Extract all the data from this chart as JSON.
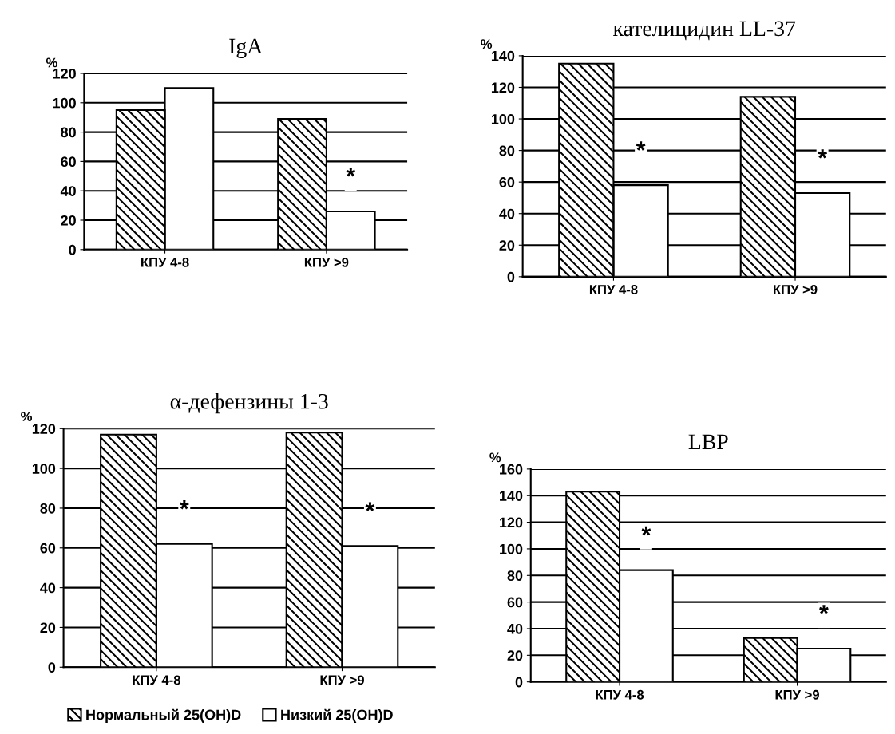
{
  "chart_data": [
    {
      "type": "bar",
      "title": "IgA",
      "ylabel": "%",
      "categories": [
        "КПУ 4-8",
        "КПУ >9"
      ],
      "series": [
        {
          "color": "#000000",
          "values": [
            95,
            89
          ]
        },
        {
          "color": "#ffffff",
          "values": [
            110,
            26
          ]
        }
      ],
      "ylim": [
        0,
        120
      ],
      "yticks": [
        0,
        20,
        40,
        60,
        80,
        100,
        120
      ],
      "grid": "y",
      "legend": false,
      "annotations": [
        {
          "text": "*",
          "x": "КПУ >9",
          "y": 26
        }
      ]
    },
    {
      "type": "bar",
      "title": "кателицидин LL-37",
      "ylabel": "%",
      "categories": [
        "КПУ 4-8",
        "КПУ >9"
      ],
      "series": [
        {
          "color": "#000000",
          "values": [
            135,
            114
          ]
        },
        {
          "color": "#ffffff",
          "values": [
            58,
            53
          ]
        }
      ],
      "ylim": [
        0,
        140
      ],
      "yticks": [
        0,
        20,
        40,
        60,
        80,
        100,
        120,
        140
      ],
      "grid": "y",
      "legend": false,
      "annotations": [
        {
          "text": "*",
          "x": "КПУ 4-8",
          "y": 58
        },
        {
          "text": "*",
          "x": "КПУ >9",
          "y": 53
        }
      ]
    },
    {
      "type": "bar",
      "title": "α-дефензины 1-3",
      "ylabel": "%",
      "categories": [
        "КПУ 4-8",
        "КПУ >9"
      ],
      "series": [
        {
          "name": "Нормальный 25(OH)D",
          "color": "#000000",
          "values": [
            117,
            118
          ]
        },
        {
          "name": "Низкий 25(OH)D",
          "color": "#ffffff",
          "values": [
            62,
            61
          ]
        }
      ],
      "ylim": [
        0,
        120
      ],
      "yticks": [
        0,
        20,
        40,
        60,
        80,
        100,
        120
      ],
      "grid": "y",
      "legend": "bottom",
      "annotations": [
        {
          "text": "*",
          "x": "КПУ 4-8",
          "y": 62
        },
        {
          "text": "*",
          "x": "КПУ >9",
          "y": 61
        }
      ]
    },
    {
      "type": "bar",
      "title": "LBP",
      "ylabel": "%",
      "categories": [
        "КПУ 4-8",
        "КПУ >9"
      ],
      "series": [
        {
          "color": "#000000",
          "values": [
            143,
            33
          ]
        },
        {
          "color": "#ffffff",
          "values": [
            84,
            25
          ]
        }
      ],
      "ylim": [
        0,
        160
      ],
      "yticks": [
        0,
        20,
        40,
        60,
        80,
        100,
        120,
        140,
        160
      ],
      "grid": "y",
      "legend": false,
      "annotations": [
        {
          "text": "*",
          "x": "КПУ 4-8",
          "y": 84
        },
        {
          "text": "*",
          "x": "КПУ >9",
          "y": 25
        }
      ]
    }
  ]
}
